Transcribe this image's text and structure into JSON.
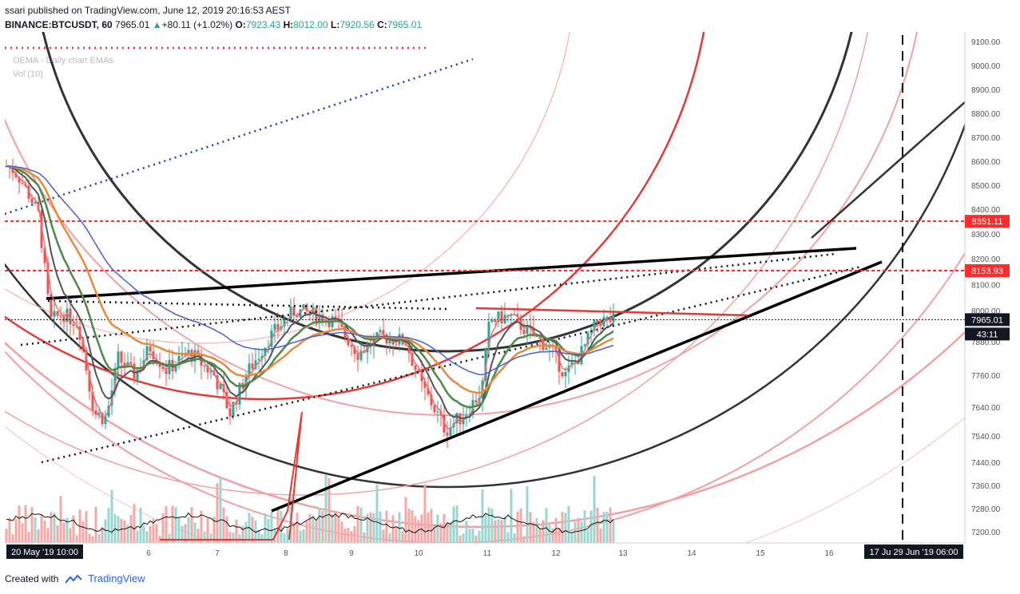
{
  "header": {
    "published_line": "ssari published on TradingView.com, June 12, 2019 20:16:53 AEST",
    "symbol": "BINANCE:BTCUSDT, 60",
    "last": "7965.01",
    "change": "+80.11 (+1.02%)",
    "o_label": "O:",
    "o_value": "7923.43",
    "h_label": "H:",
    "h_value": "8012.00",
    "l_label": "L:",
    "l_value": "7920.56",
    "c_label": "C:",
    "c_value": "7965.01"
  },
  "legend": {
    "line2": "OEMA - Daily chart EMAs",
    "line3": "Vol (10)"
  },
  "footer": {
    "created_with": "Created with",
    "brand": "TradingView"
  },
  "chart_data": {
    "type": "candlestick",
    "symbol": "BINANCE:BTCUSDT",
    "interval": "60",
    "y_axis": {
      "min": 7160,
      "max": 9120,
      "ticks": [
        "9100.00",
        "9000.00",
        "8900.00",
        "8800.00",
        "8700.00",
        "8600.00",
        "8500.00",
        "8400.00",
        "8300.00",
        "8200.00",
        "8100.00",
        "8000.00",
        "7880.00",
        "7760.00",
        "7640.00",
        "7540.00",
        "7440.00",
        "7360.00",
        "7280.00",
        "7200.00"
      ]
    },
    "x_axis": {
      "ticks": [
        "6",
        "7",
        "8",
        "9",
        "10",
        "11",
        "12",
        "13",
        "14",
        "15",
        "16"
      ],
      "start_label": "20 May '19   10:00",
      "end_label": "17 Ju  29 Jun '19   06:00"
    },
    "price_labels": [
      {
        "value": 8351.11,
        "text": "8351.11",
        "color": "#ff2a2a"
      },
      {
        "value": 8153.93,
        "text": "8153.93",
        "color": "#ff2a2a"
      },
      {
        "value": 7965.01,
        "text": "7965.01",
        "color": "#000000"
      },
      {
        "value": null,
        "text": "43:11",
        "color": "#000000"
      }
    ],
    "horizontal_levels": [
      8351.11,
      8153.93
    ],
    "last_price": 7965.01,
    "volume_indicator": "Vol (10)",
    "colors": {
      "up": "#26a69a",
      "down": "#ef5350",
      "level": "#ff2a2a",
      "ema_blue": "#4a5fd8",
      "ema_green": "#4d8a4a",
      "ema_orange": "#e88a3a"
    }
  }
}
